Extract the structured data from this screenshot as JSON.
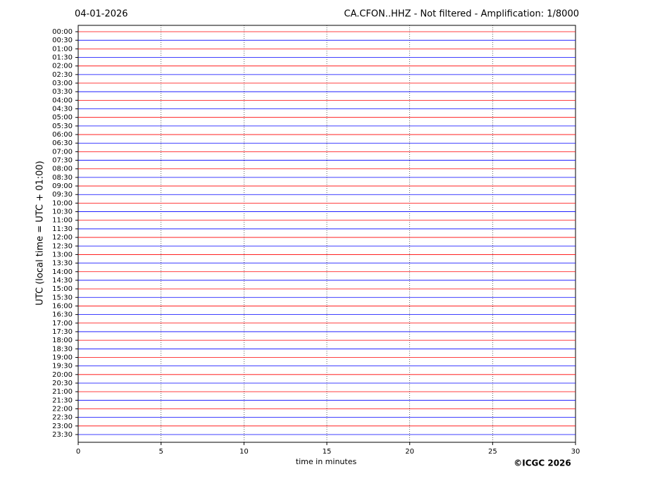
{
  "chart_data": {
    "type": "helicorder",
    "date": "04-01-2026",
    "title": "CA.CFON..HHZ - Not filtered - Amplification: 1/8000",
    "xlabel": "time in minutes",
    "ylabel": "UTC (local time = UTC + 01:00)",
    "credit": "©ICGC 2026",
    "categories": [
      "00:00",
      "00:30",
      "01:00",
      "01:30",
      "02:00",
      "02:30",
      "03:00",
      "03:30",
      "04:00",
      "04:30",
      "05:00",
      "05:30",
      "06:00",
      "06:30",
      "07:00",
      "07:30",
      "08:00",
      "08:30",
      "09:00",
      "09:30",
      "10:00",
      "10:30",
      "11:00",
      "11:30",
      "12:00",
      "12:30",
      "13:00",
      "13:30",
      "14:00",
      "14:30",
      "15:00",
      "15:30",
      "16:00",
      "16:30",
      "17:00",
      "17:30",
      "18:00",
      "18:30",
      "19:00",
      "19:30",
      "20:00",
      "20:30",
      "21:00",
      "21:30",
      "22:00",
      "22:30",
      "23:00",
      "23:30"
    ],
    "colors": [
      "#ff0000",
      "#0000ff"
    ],
    "xlim": [
      0,
      30
    ],
    "xticks": [
      0,
      5,
      10,
      15,
      20,
      25,
      30
    ],
    "grid": true
  }
}
